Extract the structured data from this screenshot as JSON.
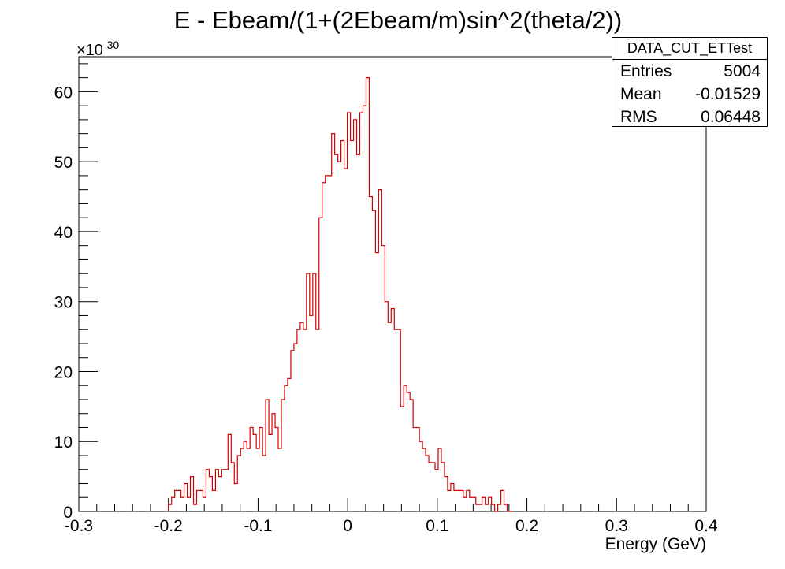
{
  "chart_data": {
    "type": "histogram",
    "title": "E - Ebeam/(1+(2Ebeam/m)sin^2(theta/2))",
    "xlabel": "Energy (GeV)",
    "ylabel": "",
    "xlim": [
      -0.3,
      0.4
    ],
    "ylim": [
      0,
      65
    ],
    "y_multiplier": "×10",
    "y_exponent": "-30",
    "x_ticks": [
      -0.3,
      -0.2,
      -0.1,
      0,
      0.1,
      0.2,
      0.3,
      0.4
    ],
    "x_tick_labels": [
      "-0.3",
      "-0.2",
      "-0.1",
      "0",
      "0.1",
      "0.2",
      "0.3",
      "0.4"
    ],
    "y_ticks": [
      0,
      10,
      20,
      30,
      40,
      50,
      60
    ],
    "y_tick_labels": [
      "0",
      "10",
      "20",
      "30",
      "40",
      "50",
      "60"
    ],
    "series": [
      {
        "name": "DATA_CUT_ETTest",
        "color": "#d20000",
        "bin_start": -0.2,
        "bin_width": 0.0035,
        "values": [
          1,
          2,
          3,
          3,
          2,
          4,
          2,
          5,
          1,
          3,
          3,
          2,
          6,
          5,
          3,
          6,
          5,
          6,
          6,
          11,
          7,
          4,
          8,
          9,
          10,
          9,
          12,
          11,
          9,
          12,
          8,
          16,
          11,
          14,
          12,
          9,
          16,
          18,
          19,
          23,
          24,
          26,
          27,
          26,
          34,
          28,
          34,
          26,
          42,
          47,
          48,
          48,
          54,
          51,
          50,
          53,
          49,
          57,
          53,
          56,
          51,
          57,
          58,
          62,
          45,
          43,
          37,
          46,
          38,
          30,
          27,
          29,
          26,
          26,
          15,
          18,
          17,
          16,
          12,
          12,
          10,
          9,
          8,
          7,
          7,
          6,
          9,
          7,
          5,
          3,
          4,
          3,
          3,
          3,
          2,
          3,
          2,
          2,
          1,
          1,
          2,
          1,
          2,
          1,
          0,
          1,
          3,
          1,
          0,
          0
        ]
      }
    ],
    "stats": {
      "name": "DATA_CUT_ETTest",
      "entries_label": "Entries",
      "entries": "5004",
      "mean_label": "Mean",
      "mean": "-0.01529",
      "rms_label": "RMS",
      "rms": "0.06448"
    }
  }
}
